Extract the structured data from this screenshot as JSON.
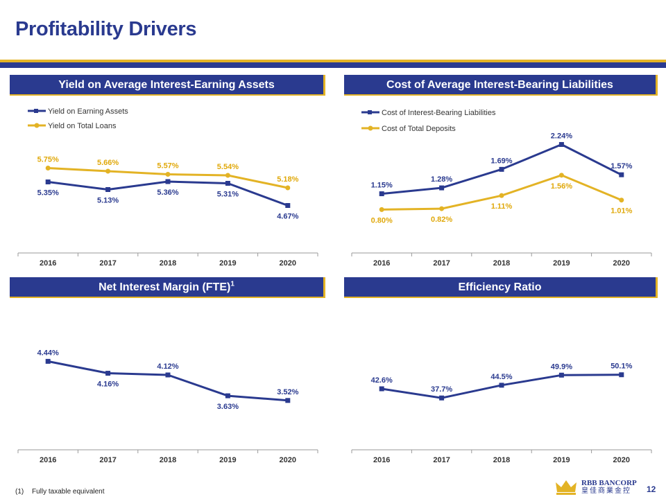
{
  "page": {
    "title": "Profitability Drivers",
    "page_number": "12"
  },
  "colors": {
    "navy": "#2a3a8f",
    "gold": "#e3b325"
  },
  "footnote": {
    "number": "(1)",
    "text": "Fully taxable equivalent"
  },
  "logo": {
    "name": "RBB BANCORP",
    "subtitle": "皇佳商業金控",
    "icon": "crown-icon"
  },
  "panels": [
    {
      "title": "Yield on Average Interest-Earning Assets"
    },
    {
      "title": "Cost of Average Interest-Bearing Liabilities"
    },
    {
      "title": "Net Interest Margin (FTE)",
      "superscript": "1"
    },
    {
      "title": "Efficiency Ratio"
    }
  ],
  "chart_data": [
    {
      "type": "line",
      "title": "Yield on Average Interest-Earning Assets",
      "categories": [
        "2016",
        "2017",
        "2018",
        "2019",
        "2020"
      ],
      "ylim": [
        4.0,
        6.4
      ],
      "series": [
        {
          "name": "Yield on Earning Assets",
          "color": "#2a3a8f",
          "values": [
            5.35,
            5.13,
            5.36,
            5.31,
            4.67
          ],
          "labels": [
            "5.35%",
            "5.13%",
            "5.36%",
            "5.31%",
            "4.67%"
          ],
          "label_pos": [
            "below",
            "below",
            "below",
            "below",
            "below"
          ]
        },
        {
          "name": "Yield on Total Loans",
          "color": "#e3b325",
          "values": [
            5.75,
            5.66,
            5.57,
            5.54,
            5.18
          ],
          "labels": [
            "5.75%",
            "5.66%",
            "5.57%",
            "5.54%",
            "5.18%"
          ],
          "label_pos": [
            "above",
            "above",
            "above",
            "above",
            "above"
          ]
        }
      ]
    },
    {
      "type": "line",
      "title": "Cost of Average Interest-Bearing Liabilities",
      "categories": [
        "2016",
        "2017",
        "2018",
        "2019",
        "2020"
      ],
      "ylim": [
        0.3,
        2.6
      ],
      "series": [
        {
          "name": "Cost of Interest-Bearing Liabilities",
          "color": "#2a3a8f",
          "values": [
            1.15,
            1.28,
            1.69,
            2.24,
            1.57
          ],
          "labels": [
            "1.15%",
            "1.28%",
            "1.69%",
            "2.24%",
            "1.57%"
          ],
          "label_pos": [
            "above",
            "above",
            "above",
            "above",
            "above"
          ]
        },
        {
          "name": "Cost of Total Deposits",
          "color": "#e3b325",
          "values": [
            0.8,
            0.82,
            1.11,
            1.56,
            1.01
          ],
          "labels": [
            "0.80%",
            "0.82%",
            "1.11%",
            "1.56%",
            "1.01%"
          ],
          "label_pos": [
            "below",
            "below",
            "below",
            "below",
            "below"
          ]
        }
      ]
    },
    {
      "type": "line",
      "title": "Net Interest Margin (FTE)",
      "categories": [
        "2016",
        "2017",
        "2018",
        "2019",
        "2020"
      ],
      "ylim": [
        2.8,
        5.0
      ],
      "series": [
        {
          "name": "Net Interest Margin (FTE)",
          "color": "#2a3a8f",
          "values": [
            4.44,
            4.16,
            4.12,
            3.63,
            3.52
          ],
          "labels": [
            "4.44%",
            "4.16%",
            "4.12%",
            "3.63%",
            "3.52%"
          ],
          "label_pos": [
            "above",
            "below",
            "above",
            "below",
            "above"
          ]
        }
      ]
    },
    {
      "type": "line",
      "title": "Efficiency Ratio",
      "categories": [
        "2016",
        "2017",
        "2018",
        "2019",
        "2020"
      ],
      "ylim": [
        20,
        70
      ],
      "series": [
        {
          "name": "Efficiency Ratio",
          "color": "#2a3a8f",
          "values": [
            42.6,
            37.7,
            44.5,
            49.9,
            50.1
          ],
          "labels": [
            "42.6%",
            "37.7%",
            "44.5%",
            "49.9%",
            "50.1%"
          ],
          "label_pos": [
            "above",
            "above",
            "above",
            "above",
            "above"
          ]
        }
      ]
    }
  ]
}
